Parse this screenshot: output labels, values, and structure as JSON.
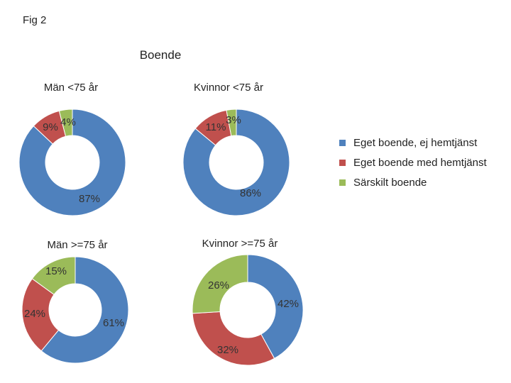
{
  "figure_label": "Fig 2",
  "colors": {
    "blue": "#4F81BD",
    "red": "#C0504D",
    "green": "#9BBB59"
  },
  "chart_data": {
    "type": "donut",
    "title": "Boende",
    "legend_position": "right",
    "legend": [
      "Eget boende, ej hemtjänst",
      "Eget boende med hemtjänst",
      "Särskilt boende"
    ],
    "charts": [
      {
        "title": "Män <75 år",
        "slices": [
          {
            "category": "Eget boende, ej hemtjänst",
            "value": 87,
            "label": "87%"
          },
          {
            "category": "Eget boende med hemtjänst",
            "value": 9,
            "label": "9%"
          },
          {
            "category": "Särskilt boende",
            "value": 4,
            "label": "4%"
          }
        ]
      },
      {
        "title": "Kvinnor <75 år",
        "slices": [
          {
            "category": "Eget boende, ej hemtjänst",
            "value": 86,
            "label": "86%"
          },
          {
            "category": "Eget boende med hemtjänst",
            "value": 11,
            "label": "11%"
          },
          {
            "category": "Särskilt boende",
            "value": 3,
            "label": "3%"
          }
        ]
      },
      {
        "title": "Män >=75 år",
        "slices": [
          {
            "category": "Eget boende, ej hemtjänst",
            "value": 61,
            "label": "61%"
          },
          {
            "category": "Eget boende med hemtjänst",
            "value": 24,
            "label": "24%"
          },
          {
            "category": "Särskilt boende",
            "value": 15,
            "label": "15%"
          }
        ]
      },
      {
        "title": "Kvinnor >=75 år",
        "slices": [
          {
            "category": "Eget boende, ej hemtjänst",
            "value": 42,
            "label": "42%"
          },
          {
            "category": "Eget boende med hemtjänst",
            "value": 32,
            "label": "32%"
          },
          {
            "category": "Särskilt boende",
            "value": 26,
            "label": "26%"
          }
        ]
      }
    ]
  }
}
